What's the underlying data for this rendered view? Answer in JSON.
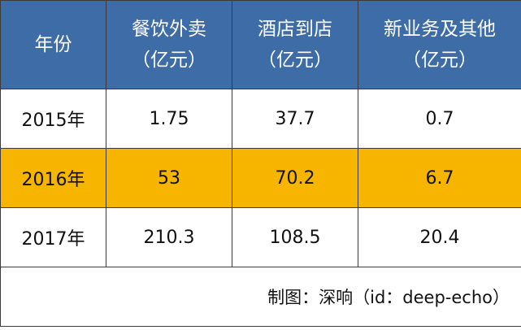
{
  "table": {
    "header": [
      [
        "年份"
      ],
      [
        "餐饮外卖",
        "（亿元）"
      ],
      [
        "酒店到店",
        "（亿元）"
      ],
      [
        "新业务及其他",
        "（亿元）"
      ]
    ],
    "rows": [
      [
        "2015年",
        1.75,
        37.7,
        0.7
      ],
      [
        "2016年",
        53,
        70.2,
        6.7
      ],
      [
        "2017年",
        210.3,
        108.5,
        20.4
      ]
    ]
  },
  "footer": "制图：深响（id：deep-echo）"
}
